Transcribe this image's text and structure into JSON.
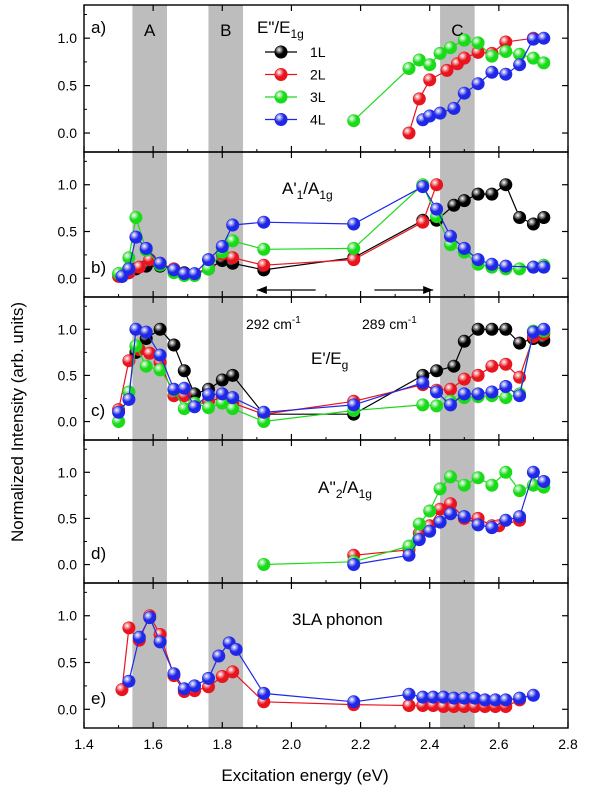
{
  "figure": {
    "ylabel": "Normalized Intensity (arb. units)",
    "xlabel": "Excitation energy (eV)",
    "xlim": [
      1.4,
      2.8
    ],
    "x_ticks": [
      "1.4",
      "1.6",
      "1.8",
      "2.0",
      "2.2",
      "2.4",
      "2.6",
      "2.8"
    ],
    "y_ticks": [
      "0.0",
      "0.5",
      "1.0"
    ],
    "shaded_bands": [
      {
        "label": "A",
        "from": 1.54,
        "to": 1.64
      },
      {
        "label": "B",
        "from": 1.76,
        "to": 1.86
      },
      {
        "label": "C",
        "from": 2.43,
        "to": 2.53
      }
    ],
    "legend": [
      {
        "name": "1L",
        "color": "#000000"
      },
      {
        "name": "2L",
        "color": "#e8141e"
      },
      {
        "name": "3L",
        "color": "#1adb1a"
      },
      {
        "name": "4L",
        "color": "#1f28e6"
      }
    ],
    "annotation_arrows": [
      {
        "text_main": "292 cm",
        "text_sup": "-1",
        "from": 2.07,
        "to": 1.9
      },
      {
        "text_main": "289 cm",
        "text_sup": "-1",
        "from": 2.24,
        "to": 2.41
      }
    ]
  },
  "chart_data": [
    {
      "type": "line",
      "panel_label": "a)",
      "title": {
        "p1": "E\"/E",
        "s1": "1g"
      },
      "ylim": [
        -0.2,
        1.35
      ],
      "series": [
        {
          "name": "2L",
          "x": [
            2.34,
            2.37,
            2.4,
            2.45,
            2.48,
            2.5,
            2.54,
            2.58,
            2.62,
            2.7
          ],
          "y": [
            0.0,
            0.36,
            0.56,
            0.66,
            0.73,
            0.79,
            0.85,
            0.84,
            0.96,
            1.0
          ]
        },
        {
          "name": "3L",
          "x": [
            2.18,
            2.34,
            2.37,
            2.4,
            2.43,
            2.46,
            2.5,
            2.54,
            2.58,
            2.62,
            2.66,
            2.7,
            2.73
          ],
          "y": [
            0.13,
            0.68,
            0.77,
            0.72,
            0.84,
            0.9,
            0.98,
            0.95,
            0.81,
            0.86,
            0.83,
            0.79,
            0.74
          ]
        },
        {
          "name": "4L",
          "x": [
            2.38,
            2.4,
            2.43,
            2.47,
            2.5,
            2.54,
            2.58,
            2.62,
            2.66,
            2.7,
            2.73
          ],
          "y": [
            0.14,
            0.18,
            0.21,
            0.26,
            0.42,
            0.52,
            0.64,
            0.62,
            0.72,
            0.99,
            1.0
          ]
        }
      ]
    },
    {
      "type": "line",
      "panel_label": "b)",
      "title": {
        "p1": "A'",
        "s1": "1",
        "p2": "/A",
        "s2": "1g"
      },
      "ylim": [
        -0.2,
        1.35
      ],
      "series": [
        {
          "name": "1L",
          "x": [
            1.51,
            1.53,
            1.55,
            1.58,
            1.62,
            1.66,
            1.69,
            1.72,
            1.76,
            1.8,
            1.83,
            1.92,
            2.18,
            2.38,
            2.42,
            2.47,
            2.5,
            2.54,
            2.58,
            2.62,
            2.66,
            2.7,
            2.73
          ],
          "y": [
            0.02,
            0.06,
            0.1,
            0.13,
            0.13,
            0.09,
            0.06,
            0.04,
            0.1,
            0.19,
            0.16,
            0.09,
            0.22,
            0.62,
            0.62,
            0.78,
            0.83,
            0.9,
            0.9,
            1.0,
            0.65,
            0.58,
            0.65
          ]
        },
        {
          "name": "2L",
          "x": [
            1.5,
            1.53,
            1.56,
            1.59,
            1.62,
            1.66,
            1.69,
            1.72,
            1.76,
            1.8,
            1.83,
            1.92,
            2.18,
            2.38,
            2.42
          ],
          "y": [
            0.02,
            0.06,
            0.12,
            0.2,
            0.16,
            0.1,
            0.05,
            0.04,
            0.12,
            0.26,
            0.22,
            0.14,
            0.2,
            0.6,
            1.0
          ]
        },
        {
          "name": "3L",
          "x": [
            1.5,
            1.53,
            1.55,
            1.58,
            1.62,
            1.66,
            1.69,
            1.72,
            1.76,
            1.8,
            1.83,
            1.92,
            2.18,
            2.38,
            2.42,
            2.46,
            2.5,
            2.54,
            2.58,
            2.62,
            2.66,
            2.7,
            2.73
          ],
          "y": [
            0.05,
            0.22,
            0.65,
            0.3,
            0.14,
            0.06,
            0.03,
            0.03,
            0.1,
            0.28,
            0.4,
            0.31,
            0.32,
            1.0,
            0.66,
            0.36,
            0.28,
            0.15,
            0.12,
            0.1,
            0.1,
            0.12,
            0.14
          ]
        },
        {
          "name": "4L",
          "x": [
            1.51,
            1.53,
            1.55,
            1.58,
            1.62,
            1.66,
            1.69,
            1.72,
            1.76,
            1.8,
            1.83,
            1.92,
            2.18,
            2.38,
            2.42,
            2.46,
            2.5,
            2.54,
            2.58,
            2.62,
            2.7,
            2.73
          ],
          "y": [
            0.02,
            0.1,
            0.44,
            0.32,
            0.16,
            0.09,
            0.05,
            0.05,
            0.2,
            0.34,
            0.57,
            0.6,
            0.58,
            0.98,
            0.74,
            0.45,
            0.32,
            0.2,
            0.15,
            0.13,
            0.12,
            0.12
          ]
        }
      ]
    },
    {
      "type": "line",
      "panel_label": "c)",
      "title": {
        "p1": "E'/E",
        "s1": "g"
      },
      "ylim": [
        -0.2,
        1.35
      ],
      "series": [
        {
          "name": "1L",
          "x": [
            1.55,
            1.58,
            1.62,
            1.66,
            1.69,
            1.72,
            1.76,
            1.8,
            1.83,
            1.92,
            2.18,
            2.38,
            2.42,
            2.47,
            2.5,
            2.54,
            2.58,
            2.62,
            2.66,
            2.7,
            2.73
          ],
          "y": [
            0.75,
            0.9,
            1.0,
            0.83,
            0.55,
            0.3,
            0.35,
            0.45,
            0.5,
            0.08,
            0.08,
            0.5,
            0.55,
            0.6,
            0.87,
            1.0,
            1.0,
            1.0,
            0.85,
            0.9,
            0.88
          ]
        },
        {
          "name": "2L",
          "x": [
            1.5,
            1.53,
            1.56,
            1.59,
            1.62,
            1.66,
            1.69,
            1.72,
            1.76,
            1.8,
            1.83,
            1.92,
            2.18,
            2.38,
            2.42,
            2.46,
            2.5,
            2.54,
            2.58,
            2.62,
            2.66,
            2.7,
            2.73
          ],
          "y": [
            0.13,
            0.66,
            0.78,
            0.74,
            0.64,
            0.28,
            0.28,
            0.18,
            0.22,
            0.26,
            0.2,
            0.08,
            0.22,
            0.4,
            0.34,
            0.35,
            0.46,
            0.5,
            0.6,
            0.62,
            0.48,
            0.92,
            0.95
          ]
        },
        {
          "name": "3L",
          "x": [
            1.5,
            1.53,
            1.55,
            1.58,
            1.62,
            1.66,
            1.69,
            1.72,
            1.76,
            1.8,
            1.83,
            1.92,
            2.18,
            2.38,
            2.42,
            2.46,
            2.5,
            2.54,
            2.58,
            2.62,
            2.66,
            2.7,
            2.73
          ],
          "y": [
            0.0,
            0.32,
            0.82,
            0.6,
            0.56,
            0.34,
            0.14,
            0.2,
            0.15,
            0.2,
            0.14,
            0.0,
            0.12,
            0.18,
            0.17,
            0.22,
            0.26,
            0.27,
            0.28,
            0.26,
            0.3,
            0.98,
            0.98
          ]
        },
        {
          "name": "4L",
          "x": [
            1.5,
            1.53,
            1.55,
            1.58,
            1.62,
            1.66,
            1.69,
            1.72,
            1.76,
            1.8,
            1.83,
            1.92,
            2.18,
            2.38,
            2.42,
            2.46,
            2.5,
            2.54,
            2.58,
            2.62,
            2.66,
            2.7,
            2.73
          ],
          "y": [
            0.1,
            0.24,
            1.0,
            0.97,
            0.72,
            0.35,
            0.36,
            0.16,
            0.29,
            0.3,
            0.26,
            0.1,
            0.18,
            0.42,
            0.32,
            0.18,
            0.3,
            0.3,
            0.32,
            0.38,
            0.28,
            0.97,
            1.0
          ]
        }
      ]
    },
    {
      "type": "line",
      "panel_label": "d)",
      "title": {
        "p1": "A''",
        "s1": "2",
        "p2": "/A",
        "s2": "1g"
      },
      "ylim": [
        -0.2,
        1.35
      ],
      "series": [
        {
          "name": "2L",
          "x": [
            2.18,
            2.34,
            2.37,
            2.4,
            2.43,
            2.46,
            2.5,
            2.54,
            2.58,
            2.6,
            2.66
          ],
          "y": [
            0.1,
            0.16,
            0.34,
            0.42,
            0.6,
            0.66,
            0.5,
            0.5,
            0.42,
            0.42,
            0.48
          ]
        },
        {
          "name": "3L",
          "x": [
            1.92,
            2.18,
            2.34,
            2.37,
            2.4,
            2.43,
            2.46,
            2.5,
            2.54,
            2.58,
            2.62,
            2.66,
            2.7,
            2.73
          ],
          "y": [
            0.0,
            0.03,
            0.2,
            0.44,
            0.58,
            0.82,
            0.95,
            0.86,
            0.94,
            0.86,
            1.0,
            0.8,
            0.86,
            0.84
          ]
        },
        {
          "name": "4L",
          "x": [
            2.18,
            2.34,
            2.37,
            2.4,
            2.43,
            2.46,
            2.5,
            2.54,
            2.58,
            2.62,
            2.66,
            2.7,
            2.73
          ],
          "y": [
            0.0,
            0.1,
            0.27,
            0.36,
            0.46,
            0.55,
            0.52,
            0.43,
            0.4,
            0.48,
            0.52,
            1.0,
            0.9
          ]
        }
      ]
    },
    {
      "type": "line",
      "panel_label": "e)",
      "title": {
        "p1": "3LA phonon"
      },
      "ylim": [
        -0.2,
        1.35
      ],
      "series": [
        {
          "name": "2L",
          "x": [
            1.51,
            1.53,
            1.56,
            1.59,
            1.62,
            1.66,
            1.69,
            1.72,
            1.76,
            1.8,
            1.83,
            1.92,
            2.18,
            2.34,
            2.38,
            2.41,
            2.44,
            2.47,
            2.5,
            2.53,
            2.56,
            2.59,
            2.62,
            2.66
          ],
          "y": [
            0.21,
            0.87,
            0.74,
            1.0,
            0.8,
            0.36,
            0.19,
            0.2,
            0.24,
            0.35,
            0.4,
            0.08,
            0.05,
            0.04,
            0.04,
            0.04,
            0.03,
            0.03,
            0.03,
            0.03,
            0.03,
            0.03,
            0.03,
            0.1
          ]
        },
        {
          "name": "4L",
          "x": [
            1.53,
            1.56,
            1.59,
            1.62,
            1.66,
            1.69,
            1.72,
            1.76,
            1.79,
            1.82,
            1.84,
            1.92,
            2.18,
            2.34,
            2.38,
            2.41,
            2.44,
            2.47,
            2.5,
            2.53,
            2.56,
            2.59,
            2.62,
            2.66,
            2.7
          ],
          "y": [
            0.3,
            0.77,
            0.98,
            0.72,
            0.38,
            0.22,
            0.25,
            0.33,
            0.57,
            0.71,
            0.64,
            0.17,
            0.08,
            0.16,
            0.13,
            0.13,
            0.13,
            0.12,
            0.12,
            0.12,
            0.1,
            0.1,
            0.1,
            0.12,
            0.15
          ]
        }
      ]
    }
  ]
}
